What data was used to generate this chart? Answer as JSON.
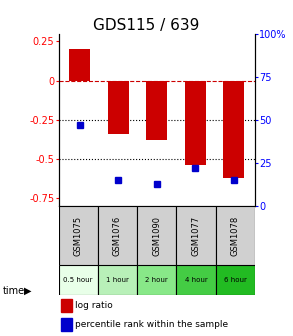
{
  "title": "GDS115 / 639",
  "samples": [
    "GSM1075",
    "GSM1076",
    "GSM1090",
    "GSM1077",
    "GSM1078"
  ],
  "times": [
    "0.5 hour",
    "1 hour",
    "2 hour",
    "4 hour",
    "6 hour"
  ],
  "time_colors": [
    "#e8ffe8",
    "#b8f0b8",
    "#88e888",
    "#44cc44",
    "#22bb22"
  ],
  "log_ratios": [
    0.2,
    -0.34,
    -0.38,
    -0.54,
    -0.62
  ],
  "percentile_ranks": [
    47,
    15,
    13,
    22,
    15
  ],
  "bar_color": "#cc0000",
  "dot_color": "#0000cc",
  "ylim_left": [
    -0.8,
    0.3
  ],
  "ylim_right": [
    0,
    100
  ],
  "yticks_left": [
    -0.75,
    -0.5,
    -0.25,
    0,
    0.25
  ],
  "yticks_right": [
    0,
    25,
    50,
    75,
    100
  ],
  "hlines": [
    0,
    -0.25,
    -0.5
  ],
  "hline_styles": [
    "--",
    ":",
    ":"
  ],
  "hline_colors": [
    "#cc0000",
    "black",
    "black"
  ],
  "sample_bg_color": "#d0d0d0",
  "title_fontsize": 11,
  "tick_fontsize": 7,
  "label_fontsize": 7
}
